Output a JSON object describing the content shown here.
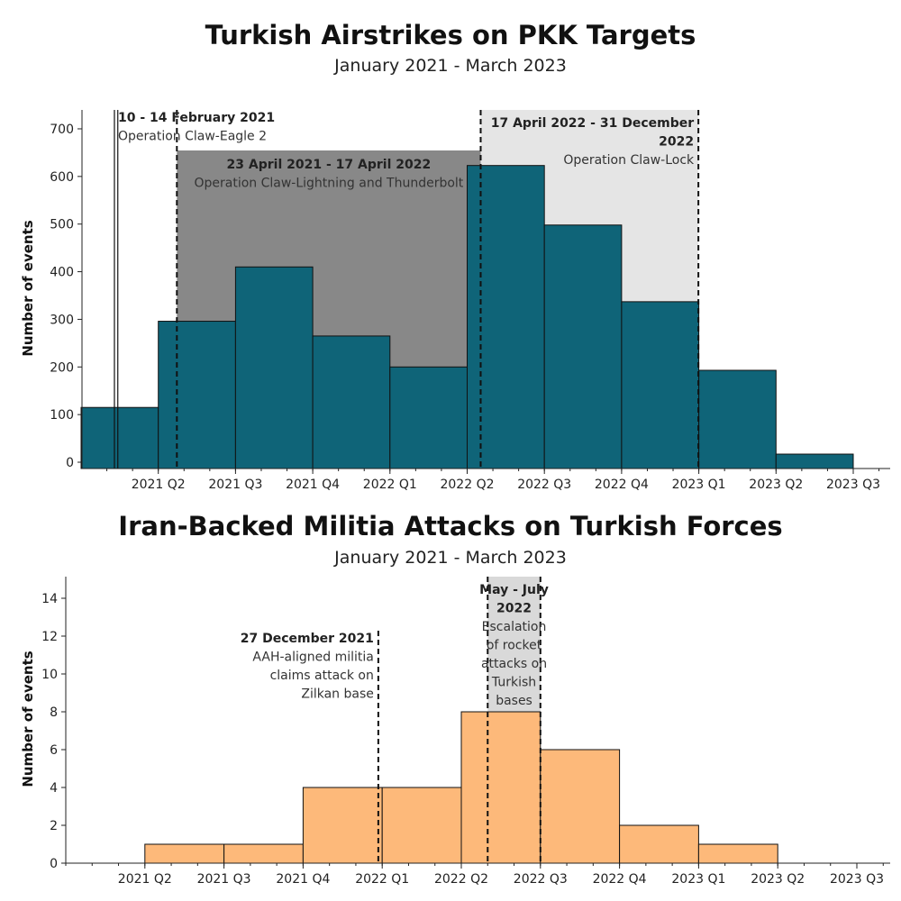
{
  "chart_data": [
    {
      "type": "bar",
      "title": "Turkish Airstrikes on PKK Targets",
      "subtitle": "January 2021 - March 2023",
      "ylabel": "Number of events",
      "xlabel": "",
      "bar_color": "#0f6478",
      "categories": [
        "2021 Q1",
        "2021 Q2",
        "2021 Q3",
        "2021 Q4",
        "2022 Q1",
        "2022 Q2",
        "2022 Q3",
        "2022 Q4",
        "2023 Q1",
        "2023 Q2"
      ],
      "values": [
        115,
        296,
        410,
        265,
        200,
        623,
        498,
        337,
        193,
        17
      ],
      "x_tick_labels": [
        "2021 Q2",
        "2021 Q3",
        "2021 Q4",
        "2022 Q1",
        "2022 Q2",
        "2022 Q3",
        "2022 Q4",
        "2023 Q1",
        "2023 Q2",
        "2023 Q3"
      ],
      "y_ticks": [
        0,
        100,
        200,
        300,
        400,
        500,
        600,
        700
      ],
      "ylim": [
        0,
        750
      ],
      "grid": false,
      "annotations": [
        {
          "start": "10 February 2021",
          "end": "14 February 2021",
          "title_lines": [
            "10 - 14 February 2021"
          ],
          "text_lines": [
            "Operation Claw-Eagle 2"
          ],
          "shade": "#ffffff",
          "text_align": "start"
        },
        {
          "start": "23 April 2021",
          "end": "17 April 2022",
          "title_lines": [
            "23 April 2021 - 17 April 2022"
          ],
          "text_lines": [
            "Operation Claw-Lightning and Thunderbolt"
          ],
          "shade": "#888888",
          "text_align": "middle"
        },
        {
          "start": "17 April 2022",
          "end": "31 December 2022",
          "title_lines": [
            "17 April 2022 - 31 December",
            "2022"
          ],
          "text_lines": [
            "Operation Claw-Lock"
          ],
          "shade": "#e5e5e5",
          "text_align": "end"
        }
      ]
    },
    {
      "type": "bar",
      "title": "Iran-Backed Militia Attacks on Turkish Forces",
      "subtitle": "January 2021 - March 2023",
      "ylabel": "Number of events",
      "xlabel": "",
      "bar_color": "#fdb97a",
      "categories": [
        "2021 Q2",
        "2021 Q3",
        "2021 Q4",
        "2022 Q1",
        "2022 Q2",
        "2022 Q3",
        "2022 Q4",
        "2023 Q1"
      ],
      "values": [
        1,
        1,
        4,
        4,
        8,
        6,
        2,
        1
      ],
      "x_tick_labels": [
        "2021 Q2",
        "2021 Q3",
        "2021 Q4",
        "2022 Q1",
        "2022 Q2",
        "2022 Q3",
        "2022 Q4",
        "2023 Q1",
        "2023 Q2",
        "2023 Q3"
      ],
      "y_ticks": [
        0,
        2,
        4,
        6,
        8,
        10,
        12,
        14
      ],
      "ylim": [
        0,
        15
      ],
      "grid": false,
      "annotations": [
        {
          "date": "27 December 2021",
          "title_lines": [
            "27 December 2021"
          ],
          "text_lines": [
            "AAH-aligned militia",
            "claims attack on",
            "Zilkan base"
          ],
          "text_align": "end"
        },
        {
          "start": "May 2022",
          "end": "July 2022",
          "title_lines": [
            "May - July",
            "2022"
          ],
          "text_lines": [
            "Escalation",
            "of rocket",
            "attacks on",
            "Turkish",
            "bases"
          ],
          "shade": "#d9d9d9",
          "text_align": "middle"
        }
      ]
    }
  ]
}
